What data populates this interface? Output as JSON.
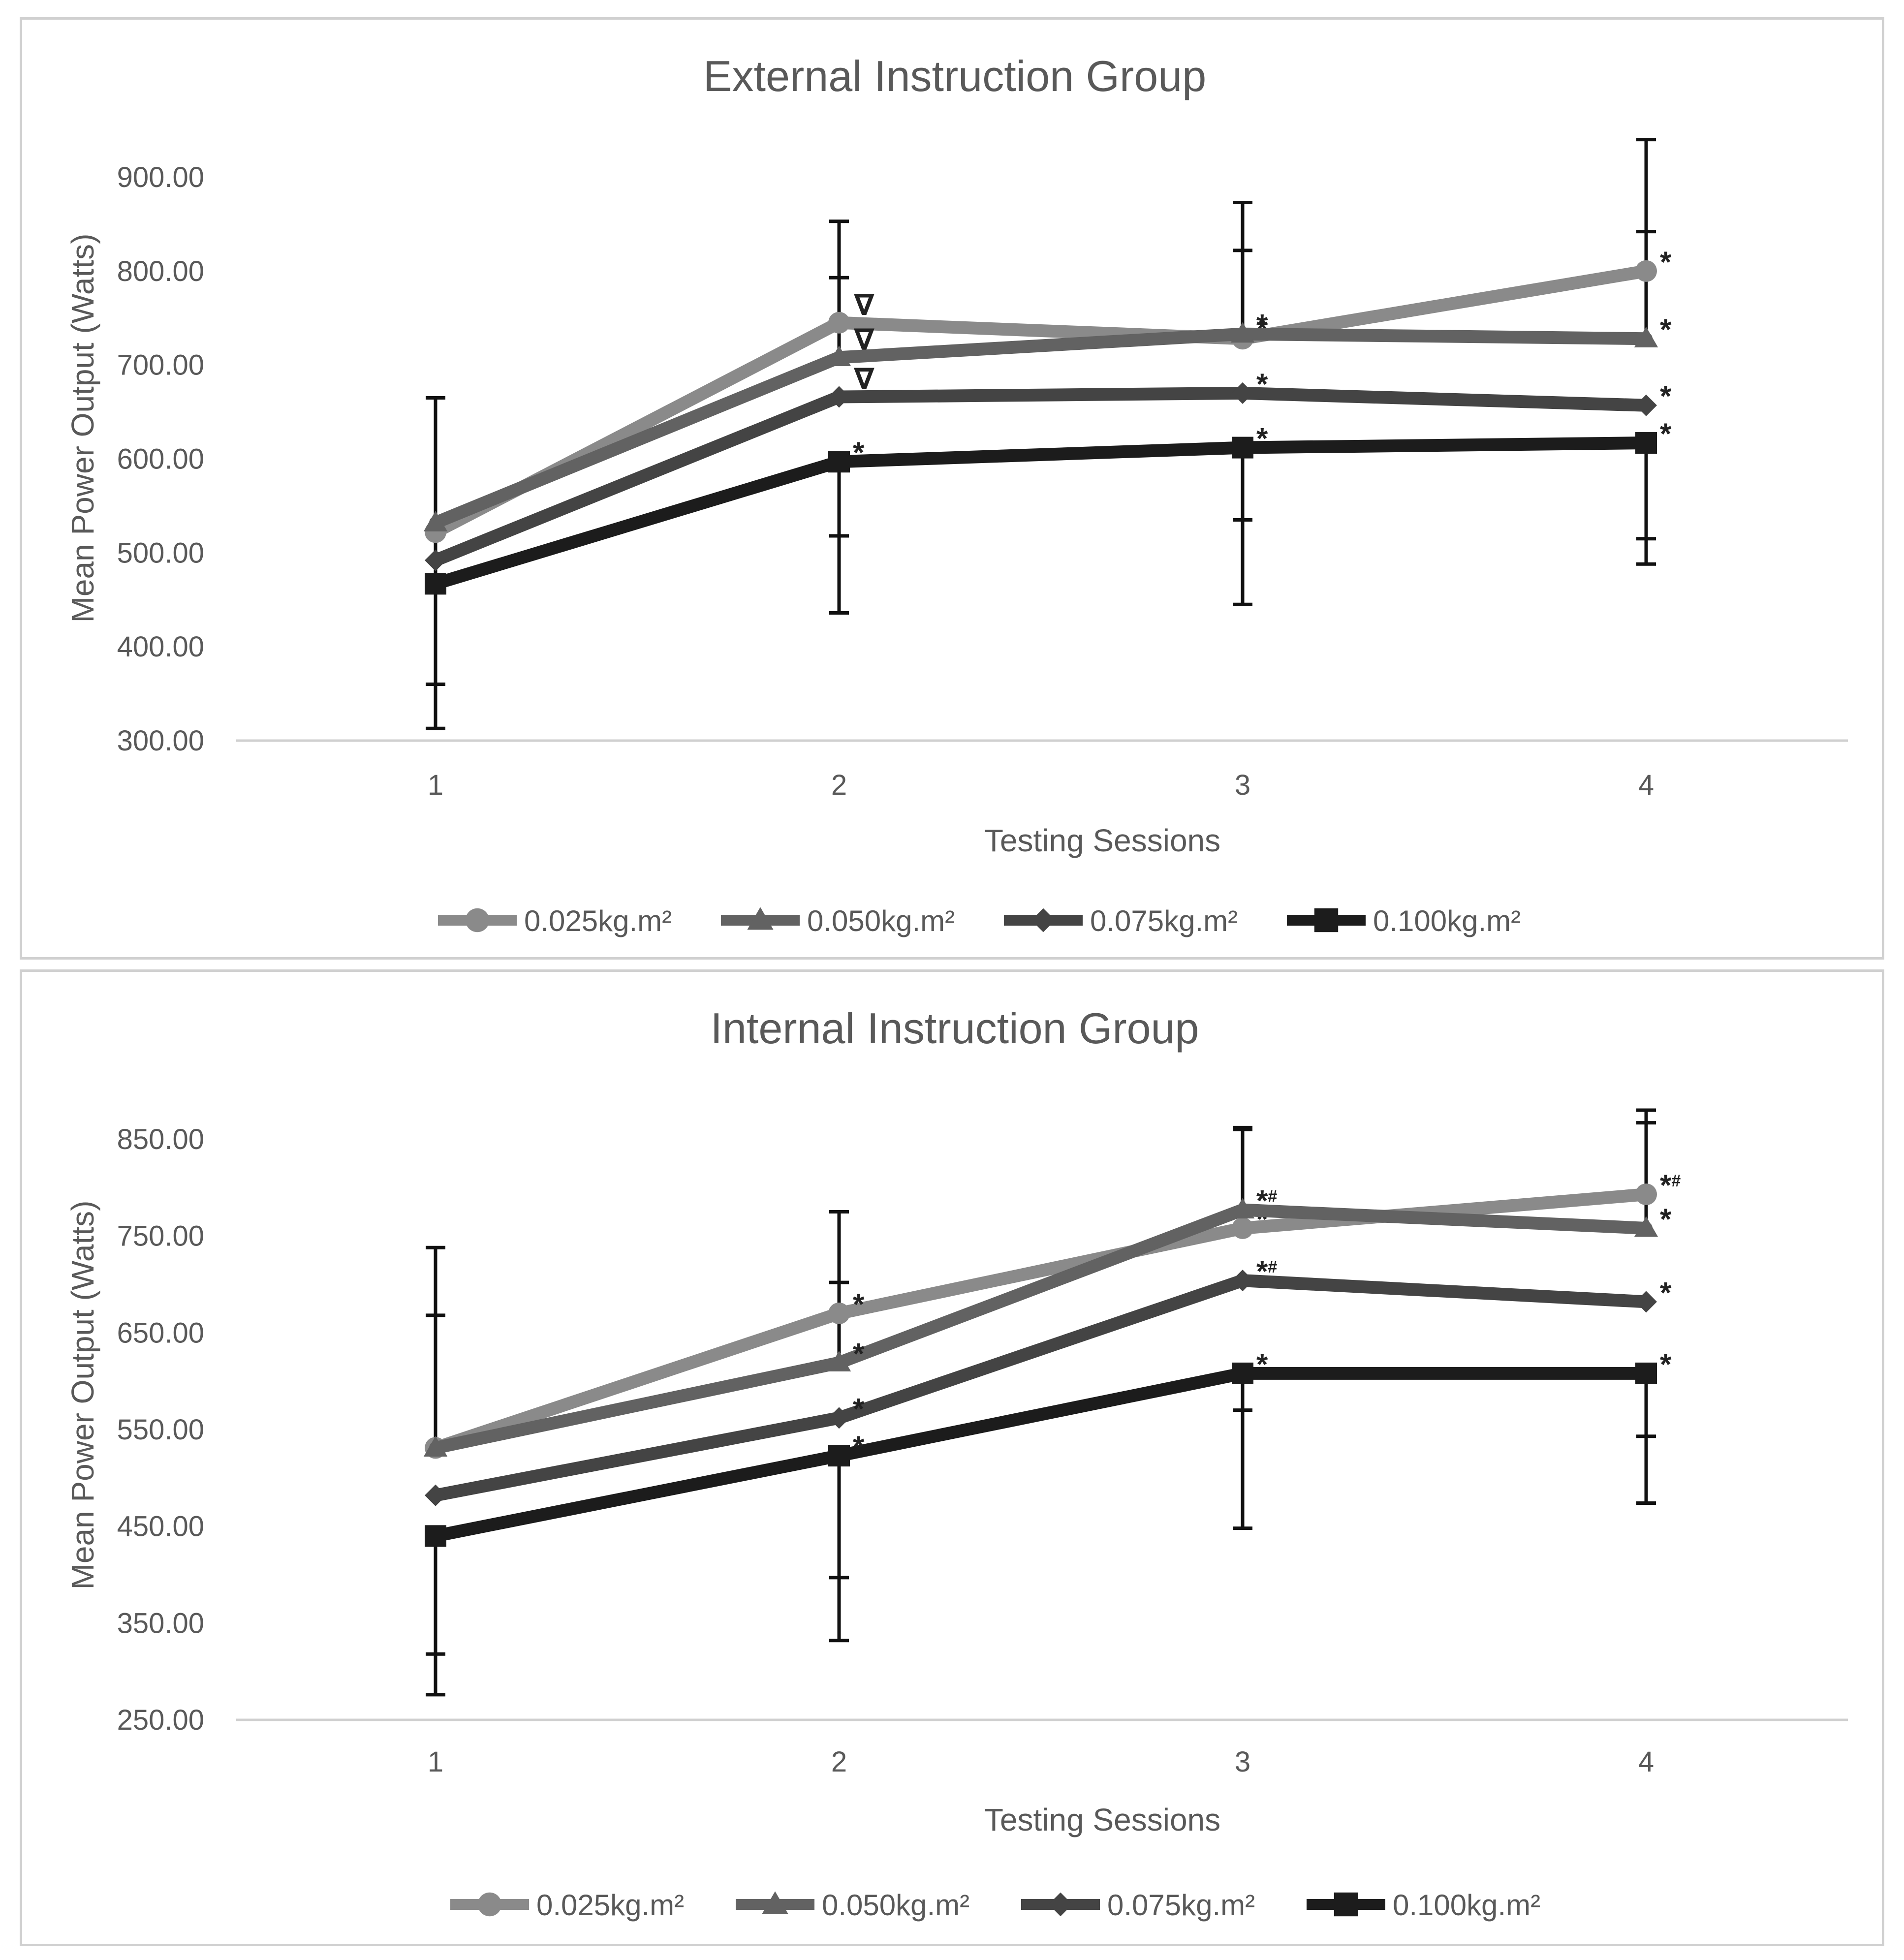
{
  "chart_data": [
    {
      "type": "line",
      "title": "External Instruction Group",
      "xlabel": "Testing Sessions",
      "ylabel": "Mean Power Output (Watts)",
      "categories": [
        "1",
        "2",
        "3",
        "4"
      ],
      "ylim": [
        300,
        900
      ],
      "yticks": [
        "300.00",
        "400.00",
        "500.00",
        "600.00",
        "700.00",
        "800.00",
        "900.00"
      ],
      "ytick_values": [
        300,
        400,
        500,
        600,
        700,
        800,
        900
      ],
      "legend_position": "bottom",
      "series": [
        {
          "name": "0.025kg.m²",
          "marker": "circle",
          "color": "#8a8a8a",
          "values": [
            522,
            745,
            728,
            800
          ],
          "annotations": [
            "",
            "∇",
            "*",
            "*"
          ],
          "errors_up": [
            null,
            793,
            822,
            842
          ],
          "errors_down": [
            null,
            null,
            null,
            null
          ]
        },
        {
          "name": "0.050kg.m²",
          "marker": "triangle",
          "color": "#626262",
          "values": [
            532,
            708,
            733,
            728
          ],
          "annotations": [
            "",
            "∇",
            "*",
            "*"
          ],
          "errors_up": [
            null,
            853,
            873,
            940
          ],
          "errors_down": [
            null,
            null,
            null,
            null
          ]
        },
        {
          "name": "0.075kg.m²",
          "marker": "diamond",
          "color": "#444444",
          "values": [
            492,
            666,
            670,
            657
          ],
          "annotations": [
            "",
            "∇",
            "*",
            "*"
          ],
          "errors_up": [
            null,
            null,
            null,
            null
          ],
          "errors_down": [
            null,
            null,
            null,
            null
          ]
        },
        {
          "name": "0.100kg.m²",
          "marker": "square",
          "color": "#1c1c1c",
          "values": [
            467,
            597,
            612,
            617
          ],
          "annotations": [
            "",
            "*",
            "*",
            "*"
          ],
          "errors_up": [
            665,
            null,
            null,
            null
          ],
          "errors_down": [
            313,
            436,
            445,
            488
          ]
        }
      ],
      "extra_error_caps": [
        360,
        518,
        535,
        515
      ]
    },
    {
      "type": "line",
      "title": "Internal Instruction Group",
      "xlabel": "Testing Sessions",
      "ylabel": "Mean Power Output (Watts)",
      "categories": [
        "1",
        "2",
        "3",
        "4"
      ],
      "ylim": [
        250,
        900
      ],
      "yticks": [
        "250.00",
        "350.00",
        "450.00",
        "550.00",
        "650.00",
        "750.00",
        "850.00"
      ],
      "ytick_values": [
        250,
        350,
        450,
        550,
        650,
        750,
        850
      ],
      "legend_position": "bottom",
      "series": [
        {
          "name": "0.025kg.m²",
          "marker": "circle",
          "color": "#8a8a8a",
          "values": [
            531,
            670,
            758,
            793
          ],
          "annotations": [
            "",
            "*",
            "*",
            "*#"
          ],
          "errors_up": [
            738,
            775,
            862,
            880
          ],
          "errors_down": [
            null,
            null,
            null,
            null
          ]
        },
        {
          "name": "0.050kg.m²",
          "marker": "triangle",
          "color": "#626262",
          "values": [
            531,
            619,
            777,
            758
          ],
          "annotations": [
            "",
            "*",
            "*#",
            "*"
          ],
          "errors_up": [
            668,
            702,
            860,
            867
          ],
          "errors_down": [
            null,
            null,
            null,
            null
          ]
        },
        {
          "name": "0.075kg.m²",
          "marker": "diamond",
          "color": "#444444",
          "values": [
            482,
            562,
            704,
            682
          ],
          "annotations": [
            "",
            "*",
            "*#",
            "*"
          ],
          "errors_up": [
            null,
            null,
            null,
            null
          ],
          "errors_down": [
            null,
            null,
            null,
            null
          ]
        },
        {
          "name": "0.100kg.m²",
          "marker": "square",
          "color": "#1c1c1c",
          "values": [
            440,
            523,
            608,
            608
          ],
          "annotations": [
            "",
            "*",
            "*",
            "*"
          ],
          "errors_up": [
            null,
            null,
            null,
            null
          ],
          "errors_down": [
            276,
            332,
            448,
            474
          ]
        }
      ],
      "extra_error_caps": [
        318,
        397,
        570,
        543
      ]
    }
  ]
}
